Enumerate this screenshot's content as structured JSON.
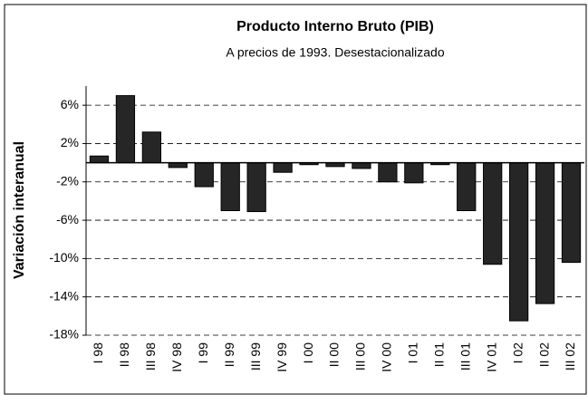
{
  "chart_data": {
    "type": "bar",
    "title": "Producto Interno Bruto (PIB)",
    "subtitle": "A precios de 1993. Desestacionalizado",
    "y_label": "Variación interanual",
    "categories": [
      "I 98",
      "II 98",
      "III 98",
      "IV 98",
      "I 99",
      "II 99",
      "III 99",
      "IV 99",
      "I 00",
      "II 00",
      "III 00",
      "IV 00",
      "I 01",
      "II 01",
      "III 01",
      "IV 01",
      "I 02",
      "II 02",
      "III 02"
    ],
    "values": [
      0.7,
      7.0,
      3.2,
      -0.5,
      -2.5,
      -5.0,
      -5.1,
      -1.0,
      -0.2,
      -0.4,
      -0.6,
      -2.0,
      -2.1,
      -0.2,
      -5.0,
      -10.6,
      -16.5,
      -14.7,
      -10.4
    ],
    "color": "#262626",
    "ylim": [
      -18,
      8
    ],
    "yticks": [
      {
        "value": 6,
        "label": "6%"
      },
      {
        "value": 2,
        "label": "2%"
      },
      {
        "value": -2,
        "label": "-2%"
      },
      {
        "value": -6,
        "label": "-6%"
      },
      {
        "value": -10,
        "label": "-10%"
      },
      {
        "value": -14,
        "label": "-14%"
      },
      {
        "value": -18,
        "label": "-18%"
      }
    ],
    "grid": true
  }
}
